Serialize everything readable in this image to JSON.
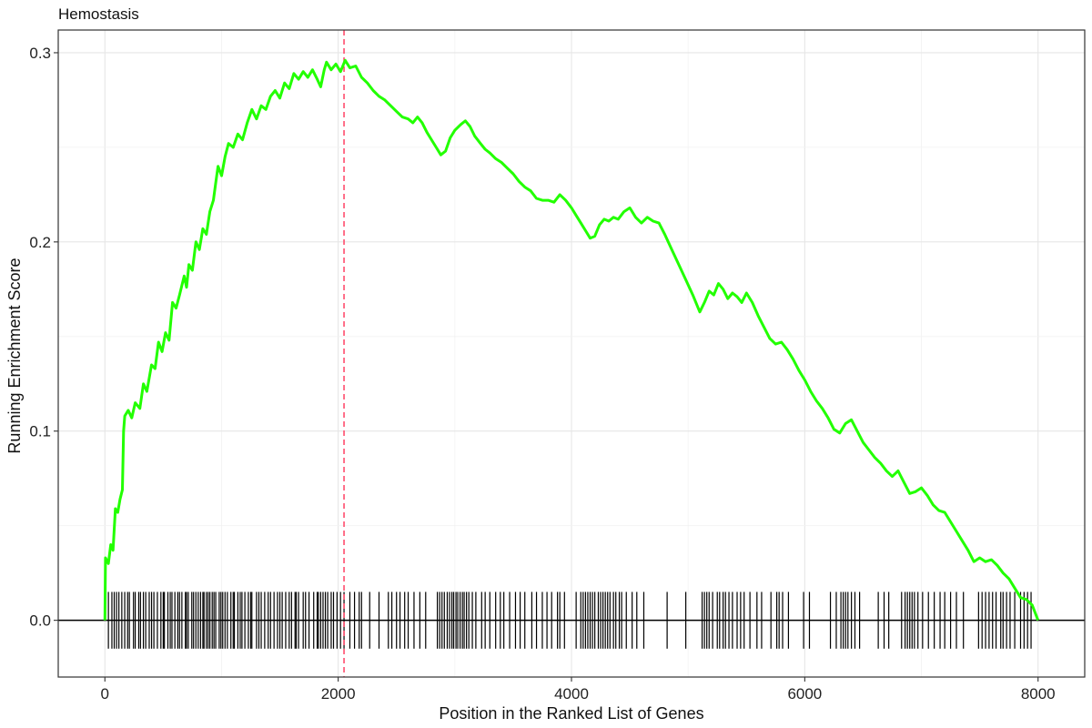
{
  "chart_data": {
    "type": "line",
    "title": "Hemostasis",
    "xlabel": "Position in the Ranked List of Genes",
    "ylabel": "Running Enrichment Score",
    "xlim": [
      -400,
      8400
    ],
    "ylim": [
      -0.03,
      0.312
    ],
    "x_ticks": [
      0,
      2000,
      4000,
      6000,
      8000
    ],
    "x_tick_labels": [
      "0",
      "2000",
      "4000",
      "6000",
      "8000"
    ],
    "y_ticks": [
      0.0,
      0.1,
      0.2,
      0.3
    ],
    "y_tick_labels": [
      "0.0",
      "0.1",
      "0.2",
      "0.3"
    ],
    "grid": true,
    "series": [
      {
        "color": "#22ff00",
        "points": [
          [
            0,
            0.0
          ],
          [
            5,
            0.033
          ],
          [
            30,
            0.03
          ],
          [
            50,
            0.04
          ],
          [
            70,
            0.037
          ],
          [
            90,
            0.059
          ],
          [
            110,
            0.057
          ],
          [
            130,
            0.064
          ],
          [
            150,
            0.069
          ],
          [
            160,
            0.1
          ],
          [
            170,
            0.108
          ],
          [
            200,
            0.111
          ],
          [
            230,
            0.107
          ],
          [
            260,
            0.115
          ],
          [
            300,
            0.112
          ],
          [
            330,
            0.125
          ],
          [
            360,
            0.121
          ],
          [
            400,
            0.135
          ],
          [
            430,
            0.133
          ],
          [
            460,
            0.147
          ],
          [
            490,
            0.142
          ],
          [
            520,
            0.152
          ],
          [
            550,
            0.148
          ],
          [
            580,
            0.168
          ],
          [
            610,
            0.165
          ],
          [
            640,
            0.172
          ],
          [
            680,
            0.182
          ],
          [
            700,
            0.176
          ],
          [
            720,
            0.188
          ],
          [
            750,
            0.185
          ],
          [
            780,
            0.2
          ],
          [
            810,
            0.196
          ],
          [
            840,
            0.207
          ],
          [
            870,
            0.204
          ],
          [
            900,
            0.216
          ],
          [
            930,
            0.222
          ],
          [
            950,
            0.231
          ],
          [
            970,
            0.24
          ],
          [
            1000,
            0.235
          ],
          [
            1030,
            0.245
          ],
          [
            1060,
            0.252
          ],
          [
            1100,
            0.25
          ],
          [
            1140,
            0.257
          ],
          [
            1180,
            0.254
          ],
          [
            1220,
            0.263
          ],
          [
            1260,
            0.27
          ],
          [
            1300,
            0.265
          ],
          [
            1340,
            0.272
          ],
          [
            1380,
            0.27
          ],
          [
            1420,
            0.277
          ],
          [
            1460,
            0.28
          ],
          [
            1500,
            0.276
          ],
          [
            1540,
            0.284
          ],
          [
            1580,
            0.281
          ],
          [
            1620,
            0.289
          ],
          [
            1660,
            0.286
          ],
          [
            1700,
            0.29
          ],
          [
            1740,
            0.287
          ],
          [
            1780,
            0.291
          ],
          [
            1820,
            0.286
          ],
          [
            1850,
            0.282
          ],
          [
            1880,
            0.291
          ],
          [
            1900,
            0.295
          ],
          [
            1940,
            0.291
          ],
          [
            1980,
            0.294
          ],
          [
            2020,
            0.29
          ],
          [
            2060,
            0.296
          ],
          [
            2100,
            0.292
          ],
          [
            2150,
            0.293
          ],
          [
            2200,
            0.287
          ],
          [
            2250,
            0.284
          ],
          [
            2300,
            0.28
          ],
          [
            2350,
            0.277
          ],
          [
            2400,
            0.275
          ],
          [
            2450,
            0.272
          ],
          [
            2500,
            0.269
          ],
          [
            2550,
            0.266
          ],
          [
            2600,
            0.265
          ],
          [
            2640,
            0.263
          ],
          [
            2680,
            0.266
          ],
          [
            2720,
            0.263
          ],
          [
            2760,
            0.258
          ],
          [
            2800,
            0.254
          ],
          [
            2840,
            0.25
          ],
          [
            2880,
            0.246
          ],
          [
            2920,
            0.248
          ],
          [
            2960,
            0.255
          ],
          [
            3000,
            0.259
          ],
          [
            3050,
            0.262
          ],
          [
            3090,
            0.264
          ],
          [
            3130,
            0.261
          ],
          [
            3170,
            0.256
          ],
          [
            3220,
            0.252
          ],
          [
            3260,
            0.249
          ],
          [
            3300,
            0.247
          ],
          [
            3350,
            0.244
          ],
          [
            3400,
            0.242
          ],
          [
            3450,
            0.239
          ],
          [
            3500,
            0.236
          ],
          [
            3550,
            0.232
          ],
          [
            3600,
            0.229
          ],
          [
            3650,
            0.227
          ],
          [
            3700,
            0.223
          ],
          [
            3750,
            0.222
          ],
          [
            3800,
            0.222
          ],
          [
            3850,
            0.221
          ],
          [
            3900,
            0.225
          ],
          [
            3950,
            0.222
          ],
          [
            4000,
            0.218
          ],
          [
            4040,
            0.214
          ],
          [
            4080,
            0.21
          ],
          [
            4120,
            0.206
          ],
          [
            4160,
            0.202
          ],
          [
            4200,
            0.203
          ],
          [
            4240,
            0.209
          ],
          [
            4280,
            0.212
          ],
          [
            4320,
            0.211
          ],
          [
            4360,
            0.213
          ],
          [
            4400,
            0.212
          ],
          [
            4450,
            0.216
          ],
          [
            4500,
            0.218
          ],
          [
            4550,
            0.213
          ],
          [
            4600,
            0.21
          ],
          [
            4650,
            0.213
          ],
          [
            4700,
            0.211
          ],
          [
            4750,
            0.21
          ],
          [
            4800,
            0.204
          ],
          [
            4860,
            0.196
          ],
          [
            4920,
            0.188
          ],
          [
            4980,
            0.18
          ],
          [
            5040,
            0.172
          ],
          [
            5100,
            0.163
          ],
          [
            5140,
            0.168
          ],
          [
            5180,
            0.174
          ],
          [
            5220,
            0.172
          ],
          [
            5260,
            0.178
          ],
          [
            5300,
            0.175
          ],
          [
            5340,
            0.17
          ],
          [
            5380,
            0.173
          ],
          [
            5420,
            0.171
          ],
          [
            5460,
            0.168
          ],
          [
            5500,
            0.173
          ],
          [
            5550,
            0.168
          ],
          [
            5600,
            0.161
          ],
          [
            5650,
            0.155
          ],
          [
            5700,
            0.149
          ],
          [
            5750,
            0.146
          ],
          [
            5800,
            0.147
          ],
          [
            5850,
            0.143
          ],
          [
            5900,
            0.138
          ],
          [
            5950,
            0.132
          ],
          [
            6000,
            0.127
          ],
          [
            6050,
            0.121
          ],
          [
            6100,
            0.116
          ],
          [
            6150,
            0.112
          ],
          [
            6200,
            0.107
          ],
          [
            6250,
            0.101
          ],
          [
            6300,
            0.099
          ],
          [
            6350,
            0.104
          ],
          [
            6400,
            0.106
          ],
          [
            6450,
            0.1
          ],
          [
            6500,
            0.094
          ],
          [
            6550,
            0.09
          ],
          [
            6600,
            0.086
          ],
          [
            6650,
            0.083
          ],
          [
            6700,
            0.079
          ],
          [
            6750,
            0.076
          ],
          [
            6800,
            0.079
          ],
          [
            6850,
            0.073
          ],
          [
            6900,
            0.067
          ],
          [
            6950,
            0.068
          ],
          [
            7000,
            0.07
          ],
          [
            7050,
            0.066
          ],
          [
            7100,
            0.061
          ],
          [
            7150,
            0.058
          ],
          [
            7200,
            0.057
          ],
          [
            7250,
            0.052
          ],
          [
            7300,
            0.047
          ],
          [
            7350,
            0.042
          ],
          [
            7400,
            0.037
          ],
          [
            7450,
            0.031
          ],
          [
            7500,
            0.033
          ],
          [
            7550,
            0.031
          ],
          [
            7600,
            0.032
          ],
          [
            7650,
            0.029
          ],
          [
            7700,
            0.025
          ],
          [
            7750,
            0.022
          ],
          [
            7800,
            0.017
          ],
          [
            7850,
            0.012
          ],
          [
            7900,
            0.011
          ],
          [
            7950,
            0.008
          ],
          [
            8000,
            0.0
          ]
        ]
      }
    ],
    "peak_line": {
      "x": 2050,
      "color": "#ff4d6d"
    },
    "zero_line_color": "#000000",
    "rug": {
      "color": "#000000",
      "half_height": 0.015,
      "positions": [
        30,
        60,
        80,
        100,
        120,
        145,
        170,
        195,
        210,
        245,
        260,
        290,
        305,
        330,
        350,
        380,
        400,
        420,
        450,
        480,
        500,
        510,
        540,
        560,
        575,
        600,
        625,
        640,
        660,
        690,
        700,
        715,
        745,
        760,
        780,
        800,
        820,
        840,
        850,
        870,
        885,
        900,
        920,
        935,
        950,
        980,
        995,
        1010,
        1030,
        1050,
        1080,
        1100,
        1110,
        1140,
        1160,
        1175,
        1200,
        1230,
        1250,
        1260,
        1300,
        1320,
        1340,
        1370,
        1400,
        1420,
        1450,
        1480,
        1500,
        1520,
        1550,
        1580,
        1600,
        1630,
        1640,
        1660,
        1700,
        1720,
        1750,
        1790,
        1820,
        1830,
        1850,
        1870,
        1890,
        1910,
        1940,
        1960,
        1990,
        2020,
        2050,
        2100,
        2140,
        2180,
        2200,
        2270,
        2350,
        2430,
        2460,
        2500,
        2530,
        2570,
        2600,
        2650,
        2700,
        2750,
        2850,
        2870,
        2890,
        2910,
        2935,
        2955,
        2975,
        2990,
        3010,
        3025,
        3045,
        3065,
        3080,
        3100,
        3120,
        3150,
        3180,
        3230,
        3260,
        3300,
        3350,
        3390,
        3420,
        3470,
        3520,
        3560,
        3600,
        3660,
        3700,
        3750,
        3790,
        3830,
        3880,
        3900,
        3940,
        4040,
        4080,
        4100,
        4120,
        4140,
        4160,
        4180,
        4200,
        4230,
        4250,
        4270,
        4290,
        4310,
        4330,
        4360,
        4380,
        4410,
        4430,
        4470,
        4520,
        4560,
        4620,
        4820,
        4980,
        5120,
        5140,
        5160,
        5180,
        5210,
        5250,
        5270,
        5300,
        5320,
        5350,
        5380,
        5420,
        5450,
        5480,
        5530,
        5590,
        5630,
        5710,
        5760,
        5780,
        5810,
        5860,
        5990,
        6040,
        6220,
        6270,
        6310,
        6330,
        6350,
        6370,
        6400,
        6430,
        6470,
        6630,
        6680,
        6720,
        6830,
        6860,
        6880,
        6900,
        6920,
        6940,
        6970,
        7010,
        7060,
        7110,
        7160,
        7200,
        7250,
        7300,
        7360,
        7490,
        7520,
        7550,
        7580,
        7610,
        7640,
        7680,
        7700,
        7730,
        7760,
        7800,
        7850,
        7880,
        7910,
        7940
      ]
    }
  }
}
